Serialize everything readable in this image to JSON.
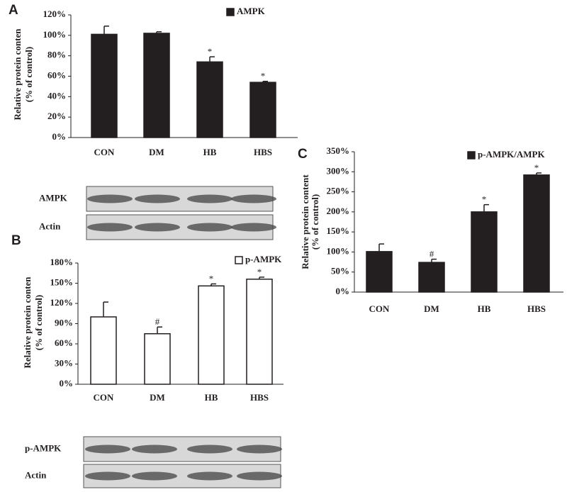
{
  "chart_data": [
    {
      "type": "bar",
      "panel": "A",
      "ylabel": [
        "Relative protein conten",
        "(% of control)"
      ],
      "categories": [
        "CON",
        "DM",
        "HB",
        "HBS"
      ],
      "series": [
        {
          "name": "AMPK",
          "color": "#231f20",
          "values": [
            101,
            102,
            74,
            54
          ],
          "errors": [
            8,
            1.5,
            5,
            1
          ],
          "annotations": [
            null,
            null,
            "*",
            "*"
          ]
        }
      ],
      "ylim": [
        0,
        120
      ],
      "yticks": [
        {
          "value": 0,
          "label": "0%"
        },
        {
          "value": 20,
          "label": "20%"
        },
        {
          "value": 40,
          "label": "40%"
        },
        {
          "value": 60,
          "label": "60%"
        },
        {
          "value": 80,
          "label": "80%"
        },
        {
          "value": 100,
          "label": "100%"
        },
        {
          "value": 120,
          "label": "120%"
        }
      ]
    },
    {
      "type": "bar",
      "panel": "B",
      "ylabel": [
        "Relative protein conten",
        "(% of control)"
      ],
      "categories": [
        "CON",
        "DM",
        "HB",
        "HBS"
      ],
      "series": [
        {
          "name": "p-AMPK",
          "color": "#ffffff",
          "values": [
            100,
            75,
            146,
            156
          ],
          "errors": [
            22,
            10,
            3,
            3
          ],
          "annotations": [
            null,
            "#",
            "*",
            "*"
          ]
        }
      ],
      "ylim": [
        0,
        180
      ],
      "yticks": [
        {
          "value": 0,
          "label": "0%"
        },
        {
          "value": 30,
          "label": "30%"
        },
        {
          "value": 60,
          "label": "60%"
        },
        {
          "value": 90,
          "label": "90%"
        },
        {
          "value": 120,
          "label": "120%"
        },
        {
          "value": 150,
          "label": "150%"
        },
        {
          "value": 180,
          "label": "180%"
        }
      ]
    },
    {
      "type": "bar",
      "panel": "C",
      "ylabel": [
        "Relative protein content",
        "(% of control)"
      ],
      "categories": [
        "CON",
        "DM",
        "HB",
        "HBS"
      ],
      "series": [
        {
          "name": "p-AMPK/AMPK",
          "color": "#231f20",
          "values": [
            101,
            74,
            200,
            292
          ],
          "errors": [
            19,
            8,
            18,
            5
          ],
          "annotations": [
            null,
            "#",
            "*",
            "*"
          ]
        }
      ],
      "ylim": [
        0,
        350
      ],
      "yticks": [
        {
          "value": 0,
          "label": "0%"
        },
        {
          "value": 50,
          "label": "50%"
        },
        {
          "value": 100,
          "label": "100%"
        },
        {
          "value": 150,
          "label": "150%"
        },
        {
          "value": 200,
          "label": "200%"
        },
        {
          "value": 250,
          "label": "250%"
        },
        {
          "value": 300,
          "label": "300%"
        },
        {
          "value": 350,
          "label": "350%"
        }
      ]
    }
  ],
  "blots": [
    {
      "rows": [
        "AMPK",
        "Actin"
      ]
    },
    {
      "rows": [
        "p-AMPK",
        "Actin"
      ]
    }
  ]
}
